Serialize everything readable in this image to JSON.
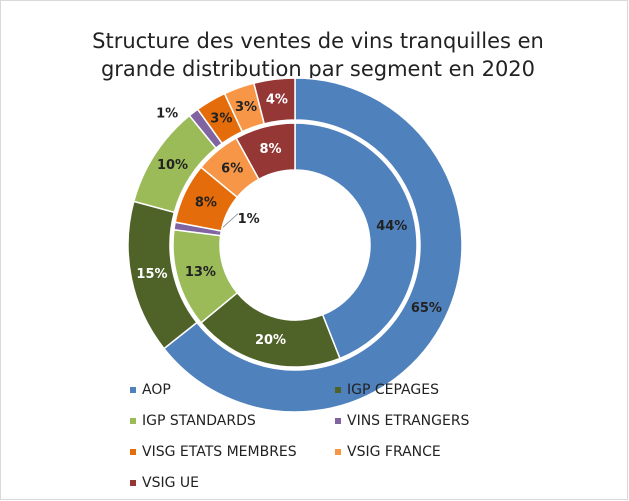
{
  "chart_data": {
    "type": "donut",
    "title": [
      "Structure des ventes de vins tranquilles en",
      "grande distribution par segment en 2020"
    ],
    "categories": [
      "AOP",
      "IGP CEPAGES",
      "IGP STANDARDS",
      "VINS ETRANGERS",
      "VISG ETATS MEMBRES",
      "VSIG FRANCE",
      "VSIG UE"
    ],
    "colors": [
      "#4f81bd",
      "#4f6228",
      "#9bbb59",
      "#8064a2",
      "#e46c0a",
      "#f79646",
      "#953735"
    ],
    "series": [
      {
        "values": [
          44,
          20,
          13,
          1,
          8,
          6,
          8
        ],
        "value_labels": [
          "44%",
          "20%",
          "13%",
          "1%",
          "8%",
          "6%",
          "8%"
        ]
      },
      {
        "values": [
          65,
          15,
          10,
          1,
          3,
          3,
          4
        ],
        "value_labels": [
          "65%",
          "15%",
          "10%",
          "1%",
          "3%",
          "3%",
          "4%"
        ]
      }
    ]
  }
}
